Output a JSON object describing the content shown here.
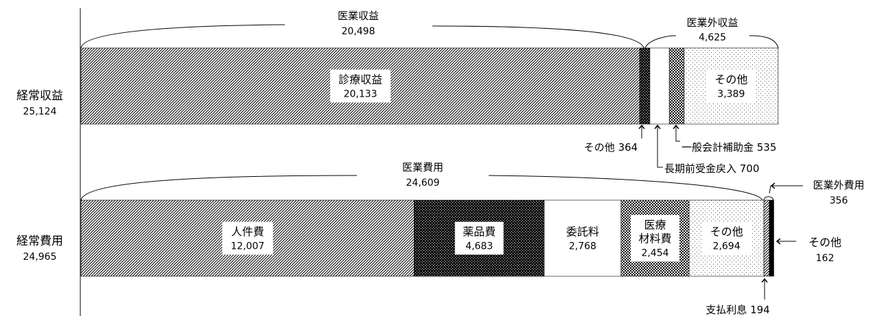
{
  "chart_data": {
    "type": "bar",
    "orientation": "horizontal-stacked",
    "categories": [
      {
        "name": "経常収益",
        "total": "25,124"
      },
      {
        "name": "経常費用",
        "total": "24,965"
      }
    ],
    "series": [
      {
        "category": "経常収益",
        "segments": [
          {
            "label": "診療収益",
            "value": 20133,
            "display": "20,133",
            "pattern": "diagonal"
          },
          {
            "label": "その他",
            "value": 364,
            "display": "364",
            "pattern": "dense-dots"
          },
          {
            "label": "長期前受金戻入",
            "value": 700,
            "display": "700",
            "pattern": "none"
          },
          {
            "label": "一般会計補助金",
            "value": 535,
            "display": "535",
            "pattern": "checker"
          },
          {
            "label": "その他",
            "value": 3389,
            "display": "3,389",
            "pattern": "sparse-dots"
          }
        ]
      },
      {
        "category": "経常費用",
        "segments": [
          {
            "label": "人件費",
            "value": 12007,
            "display": "12,007",
            "pattern": "diagonal"
          },
          {
            "label": "薬品費",
            "value": 4683,
            "display": "4,683",
            "pattern": "dense-dots"
          },
          {
            "label": "委託料",
            "value": 2768,
            "display": "2,768",
            "pattern": "none"
          },
          {
            "label": "医療材料費",
            "label_lines": [
              "医療",
              "材料費"
            ],
            "value": 2454,
            "display": "2,454",
            "pattern": "checker"
          },
          {
            "label": "その他",
            "value": 2694,
            "display": "2,694",
            "pattern": "sparse-dots"
          },
          {
            "label": "支払利息",
            "value": 194,
            "display": "194",
            "pattern": "diagonal"
          },
          {
            "label": "その他",
            "value": 162,
            "display": "162",
            "pattern": "solid"
          }
        ]
      }
    ],
    "groups": [
      {
        "label": "医業収益",
        "value": "20,498"
      },
      {
        "label": "医業外収益",
        "value": "4,625"
      },
      {
        "label": "医業費用",
        "value": "24,609"
      },
      {
        "label": "医業外費用",
        "value": "356"
      }
    ],
    "callouts": [
      {
        "text": "その他 364"
      },
      {
        "text": "長期前受金戻入 700"
      },
      {
        "text": "一般会計補助金 535"
      },
      {
        "text": "支払利息 194"
      },
      {
        "text": "その他",
        "value": "162"
      }
    ],
    "xlim": [
      0,
      25124
    ],
    "grid": false,
    "legend": "none"
  }
}
